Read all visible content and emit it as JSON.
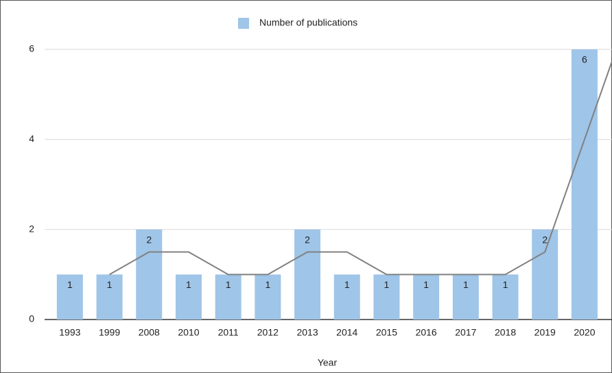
{
  "chart_data": {
    "type": "bar",
    "categories": [
      "1993",
      "1999",
      "2008",
      "2010",
      "2011",
      "2012",
      "2013",
      "2014",
      "2015",
      "2016",
      "2017",
      "2018",
      "2019",
      "2020"
    ],
    "series": [
      {
        "name": "Number of publications",
        "color": "#9fc5e8",
        "values": [
          1,
          1,
          2,
          1,
          1,
          1,
          2,
          1,
          1,
          1,
          1,
          1,
          2,
          6
        ]
      }
    ],
    "trend": {
      "color": "#808080",
      "values": [
        null,
        1,
        1.5,
        1.5,
        1,
        1,
        1.5,
        1.5,
        1,
        1,
        1,
        1,
        1.5,
        4
      ]
    },
    "x_label": "Year",
    "ylim": [
      0,
      6
    ],
    "yticks": [
      0,
      2,
      4,
      6
    ],
    "grid": true,
    "legend": "top"
  }
}
